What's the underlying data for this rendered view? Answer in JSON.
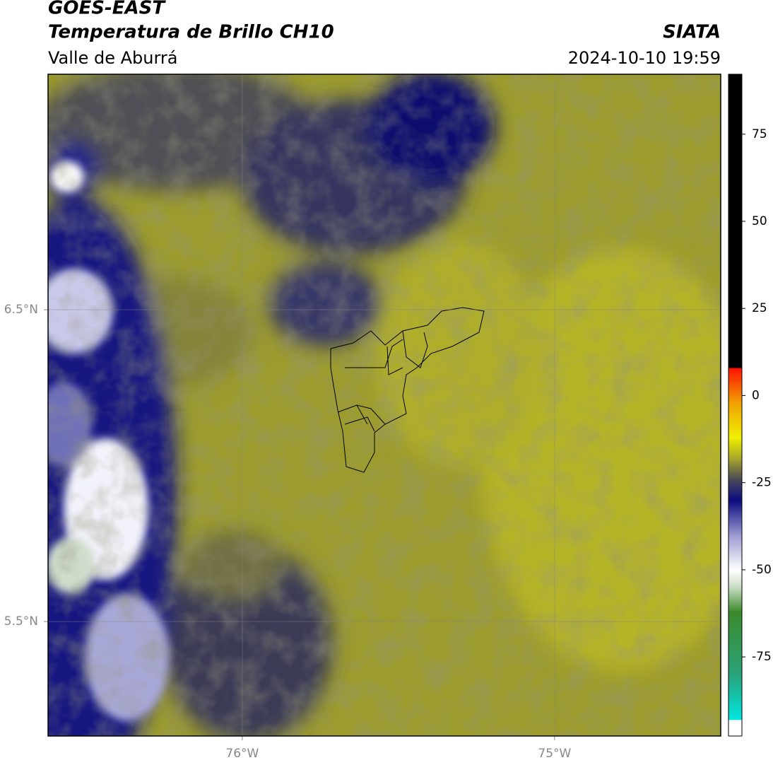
{
  "header": {
    "title": "GOES-EAST",
    "subtitle": "Temperatura de Brillo CH10",
    "region": "Valle de Aburrá",
    "source": "SIATA",
    "datetime": "2024-10-10 19:59"
  },
  "map": {
    "xlim": [
      -76.622,
      -74.468
    ],
    "ylim": [
      5.133,
      7.255
    ],
    "xticks": [
      {
        "value": -76,
        "label": "76°W"
      },
      {
        "value": -75,
        "label": "75°W"
      }
    ],
    "yticks": [
      {
        "value": 6.5,
        "label": "6.5°N"
      },
      {
        "value": 5.5,
        "label": "5.5°N"
      }
    ],
    "grid": true
  },
  "colorbar": {
    "lim": [
      -97.7,
      92.2
    ],
    "ticks": [
      75,
      50,
      25,
      0,
      -25,
      -50,
      -75
    ],
    "stops": [
      {
        "value": -97.7,
        "color": "#ffffff"
      },
      {
        "value": -93,
        "color": "#ffffff"
      },
      {
        "value": -93,
        "color": "#00e5e0"
      },
      {
        "value": -80,
        "color": "#2aa37a"
      },
      {
        "value": -62,
        "color": "#3a8a2a"
      },
      {
        "value": -55,
        "color": "#c9dcc4"
      },
      {
        "value": -50,
        "color": "#ffffff"
      },
      {
        "value": -40,
        "color": "#9a9ad0"
      },
      {
        "value": -30,
        "color": "#0a0a80"
      },
      {
        "value": -24,
        "color": "#4a4a58"
      },
      {
        "value": -18,
        "color": "#a8a62a"
      },
      {
        "value": -12,
        "color": "#f0f000"
      },
      {
        "value": -2,
        "color": "#f0a000"
      },
      {
        "value": 8,
        "color": "#ff1000"
      },
      {
        "value": 8,
        "color": "#000000"
      },
      {
        "value": 92.2,
        "color": "#000000"
      }
    ]
  }
}
